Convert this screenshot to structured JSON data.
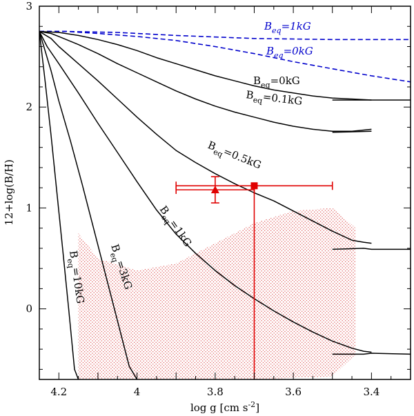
{
  "chart_data": {
    "type": "line",
    "xlabel": "log g [cm s-2]",
    "xlabel_parts": {
      "main": "log g [cm s",
      "sup": "-2",
      "close": "]"
    },
    "ylabel": "12+log(B/H)",
    "xlim": [
      4.25,
      3.3
    ],
    "ylim": [
      -0.7,
      3.0
    ],
    "xticks": [
      {
        "value": 4.2,
        "label": "4.2"
      },
      {
        "value": 4.0,
        "label": "4"
      },
      {
        "value": 3.8,
        "label": "3.8"
      },
      {
        "value": 3.6,
        "label": "3.6"
      },
      {
        "value": 3.4,
        "label": "3.4"
      }
    ],
    "yticks": [
      {
        "value": 0,
        "label": "0"
      },
      {
        "value": 1,
        "label": "1"
      },
      {
        "value": 2,
        "label": "2"
      },
      {
        "value": 3,
        "label": "3"
      }
    ],
    "colors": {
      "axis": "#000000",
      "solid": "#000000",
      "dashed": "#0000cc",
      "obs": "#e00000",
      "hatch": "#e06060"
    },
    "series": [
      {
        "name": "Beq=1kG (dashed)",
        "style": "dashed",
        "label": {
          "main": "B",
          "sub": "eq",
          "rest": "=1kG",
          "italic": true
        },
        "x": [
          4.25,
          4.18,
          4.05,
          3.9,
          3.7,
          3.5,
          3.3
        ],
        "y": [
          2.75,
          2.75,
          2.74,
          2.71,
          2.68,
          2.67,
          2.67
        ]
      },
      {
        "name": "Beq=0kG (dashed)",
        "style": "dashed",
        "label": {
          "main": "B",
          "sub": "eq",
          "rest": "=0kG",
          "italic": true
        },
        "x": [
          4.25,
          4.18,
          4.1,
          4.0,
          3.9,
          3.8,
          3.7,
          3.6,
          3.5,
          3.4,
          3.3
        ],
        "y": [
          2.75,
          2.75,
          2.73,
          2.7,
          2.66,
          2.6,
          2.53,
          2.45,
          2.38,
          2.31,
          2.25
        ]
      },
      {
        "name": "Beq=0kG",
        "style": "solid",
        "label": {
          "main": "B",
          "sub": "eq",
          "rest": "=0kG",
          "italic": false
        },
        "x": [
          4.25,
          4.2,
          4.15,
          4.1,
          4.05,
          4.0,
          3.95,
          3.9,
          3.85,
          3.8,
          3.75,
          3.7,
          3.65,
          3.6,
          3.55,
          3.5,
          3.45,
          3.4
        ],
        "y": [
          2.75,
          2.74,
          2.71,
          2.67,
          2.62,
          2.56,
          2.49,
          2.43,
          2.37,
          2.31,
          2.26,
          2.21,
          2.17,
          2.14,
          2.11,
          2.09,
          2.08,
          2.07
        ]
      },
      {
        "name": "Beq=0.1kG",
        "style": "solid",
        "label": {
          "main": "B",
          "sub": "eq",
          "rest": "=0.1kG",
          "italic": false
        },
        "x": [
          4.25,
          4.22,
          4.2,
          4.15,
          4.1,
          4.05,
          4.0,
          3.95,
          3.9,
          3.85,
          3.8,
          3.75,
          3.7,
          3.65,
          3.6,
          3.55,
          3.5,
          3.45,
          3.4
        ],
        "y": [
          2.75,
          2.73,
          2.7,
          2.62,
          2.53,
          2.43,
          2.34,
          2.25,
          2.16,
          2.08,
          2.01,
          1.95,
          1.9,
          1.85,
          1.81,
          1.78,
          1.76,
          1.76,
          1.78
        ]
      },
      {
        "name": "Beq=0.5kG",
        "style": "solid",
        "label": {
          "main": "B",
          "sub": "eq",
          "rest": "=0.5kG",
          "italic": false
        },
        "x": [
          4.25,
          4.22,
          4.2,
          4.15,
          4.1,
          4.05,
          4.0,
          3.95,
          3.9,
          3.85,
          3.8,
          3.75,
          3.7,
          3.65,
          3.6,
          3.55,
          3.5,
          3.45,
          3.42,
          3.4
        ],
        "y": [
          2.75,
          2.68,
          2.6,
          2.43,
          2.26,
          2.08,
          1.9,
          1.73,
          1.57,
          1.45,
          1.34,
          1.24,
          1.15,
          1.07,
          0.97,
          0.87,
          0.77,
          0.68,
          0.66,
          0.65
        ]
      },
      {
        "name": "Beq=1kG",
        "style": "solid",
        "label": {
          "main": "B",
          "sub": "eq",
          "rest": "=1kG",
          "italic": false
        },
        "x": [
          4.25,
          4.23,
          4.2,
          4.15,
          4.1,
          4.05,
          4.0,
          3.95,
          3.9,
          3.85,
          3.8,
          3.75,
          3.7,
          3.65,
          3.6,
          3.55,
          3.5,
          3.45,
          3.42,
          3.4
        ],
        "y": [
          2.75,
          2.6,
          2.43,
          2.14,
          1.84,
          1.55,
          1.26,
          0.98,
          0.74,
          0.55,
          0.38,
          0.23,
          0.1,
          -0.02,
          -0.13,
          -0.23,
          -0.32,
          -0.39,
          -0.42,
          -0.43
        ]
      },
      {
        "name": "Beq=3kG",
        "style": "solid",
        "label": {
          "main": "B",
          "sub": "eq",
          "rest": "=3kG",
          "italic": false
        },
        "x": [
          4.25,
          4.22,
          4.2,
          4.17,
          4.14,
          4.11,
          4.08,
          4.05,
          4.02,
          4.0
        ],
        "y": [
          2.75,
          2.36,
          2.06,
          1.66,
          1.23,
          0.78,
          0.33,
          -0.12,
          -0.57,
          -0.7
        ]
      },
      {
        "name": "Beq=10kG",
        "style": "solid",
        "label": {
          "main": "B",
          "sub": "eq",
          "rest": "=10kG",
          "italic": false
        },
        "x": [
          4.25,
          4.235,
          4.22,
          4.205,
          4.19,
          4.175,
          4.16,
          4.15
        ],
        "y": [
          2.75,
          2.25,
          1.72,
          1.15,
          0.58,
          0.0,
          -0.6,
          -0.7
        ]
      },
      {
        "name": "Beq=0kG branch",
        "style": "solid",
        "label": null,
        "x": [
          3.5,
          3.4,
          3.3
        ],
        "y": [
          2.07,
          2.07,
          2.07
        ]
      },
      {
        "name": "Beq=0.1kG branch",
        "style": "solid",
        "label": null,
        "x": [
          3.5,
          3.4
        ],
        "y": [
          1.75,
          1.76
        ]
      },
      {
        "name": "Beq=0.5kG branch",
        "style": "solid",
        "label": null,
        "x": [
          3.5,
          3.42,
          3.4,
          3.3
        ],
        "y": [
          0.59,
          0.6,
          0.59,
          0.59
        ]
      },
      {
        "name": "Beq=1kG branch",
        "style": "solid",
        "label": null,
        "x": [
          3.5,
          3.42,
          3.4,
          3.3
        ],
        "y": [
          -0.45,
          -0.45,
          -0.44,
          -0.45
        ]
      }
    ],
    "hatched_region": {
      "x": [
        4.15,
        4.1,
        4.0,
        3.9,
        3.8,
        3.7,
        3.6,
        3.5,
        3.44,
        3.44,
        3.5,
        3.7,
        3.9,
        4.05,
        4.15
      ],
      "y": [
        0.75,
        0.5,
        0.38,
        0.45,
        0.65,
        0.85,
        0.97,
        1.0,
        0.8,
        -0.45,
        -0.67,
        -0.7,
        -0.7,
        -0.7,
        -0.7
      ]
    },
    "observations": [
      {
        "name": "triangle",
        "marker": "triangle",
        "x": 3.8,
        "y": 1.18,
        "xerr": 0.1,
        "yerr": 0.13
      },
      {
        "name": "square",
        "marker": "square",
        "x": 3.7,
        "y": 1.22,
        "xerr": 0.2,
        "yerr_low": 1.92,
        "yerr_high": 0.0
      }
    ]
  }
}
